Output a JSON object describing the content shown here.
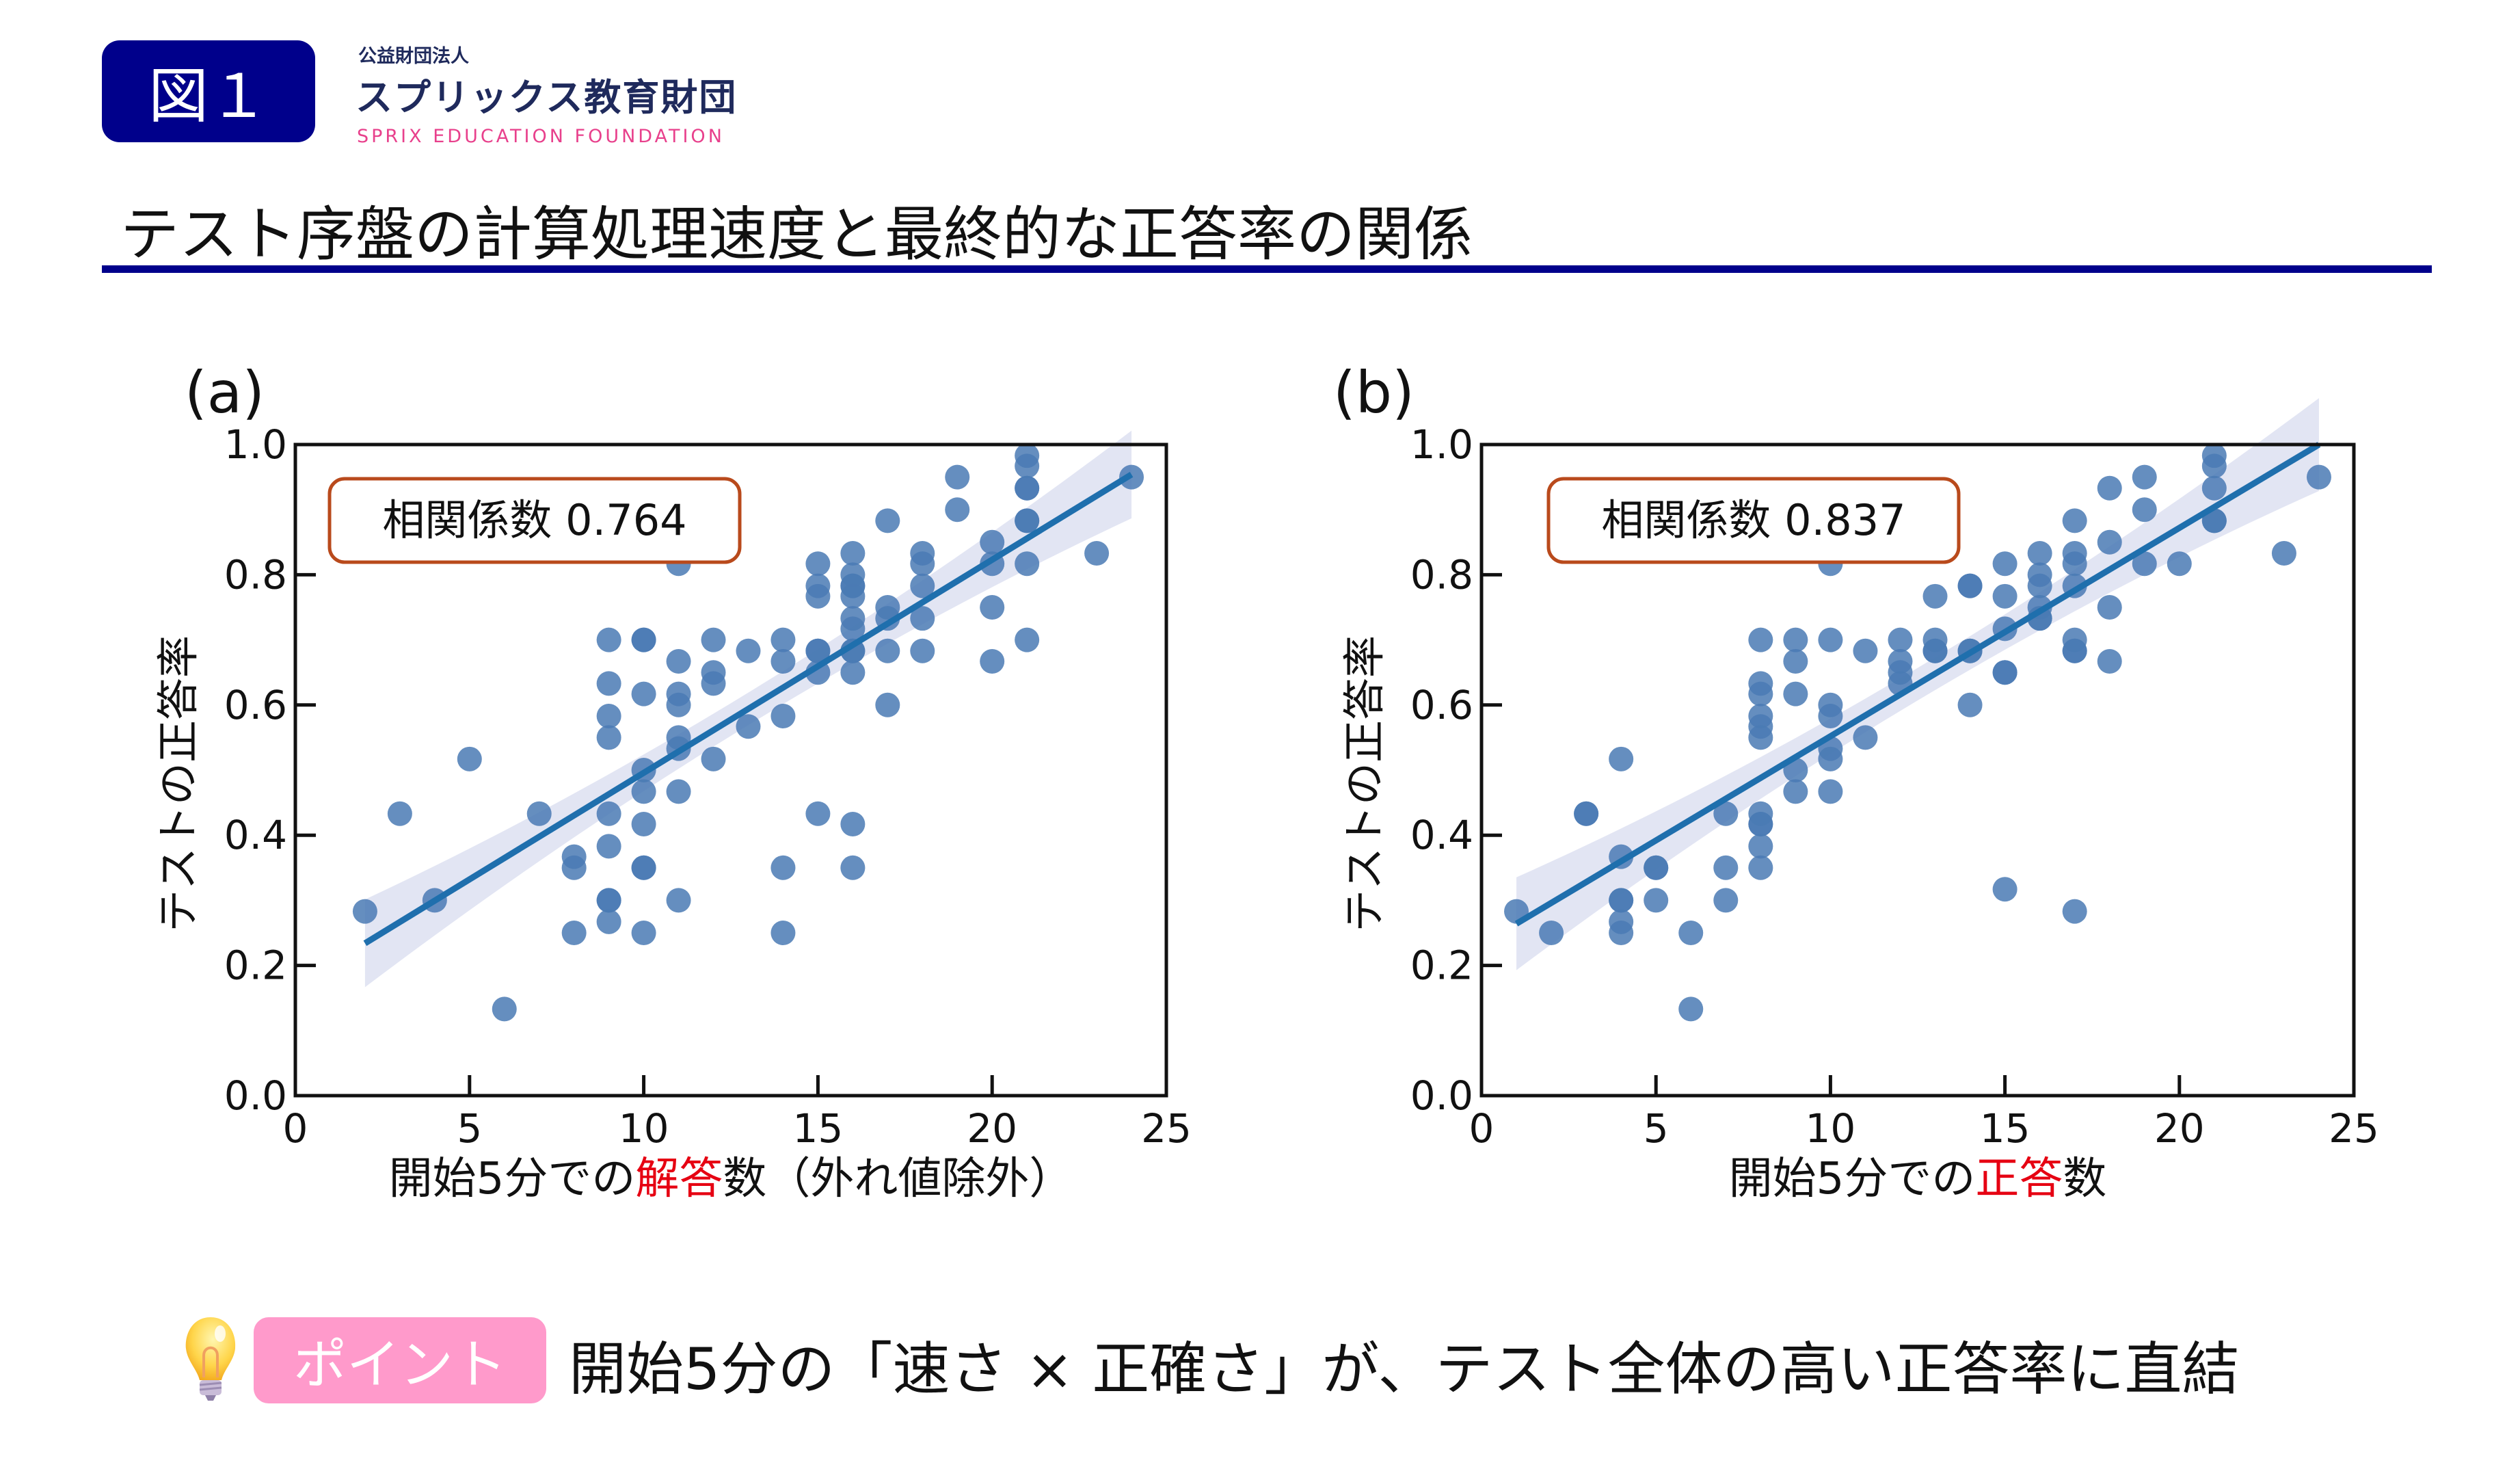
{
  "header": {
    "figure_badge": "図１",
    "org_type": "公益財団法人",
    "org_name": "スプリックス教育財団",
    "org_name_en": "SPRIX EDUCATION FOUNDATION",
    "title": "テスト序盤の計算処理速度と最終的な正答率の関係"
  },
  "colors": {
    "badge": "#00008b",
    "rule": "#00008b",
    "brand_pink": "#e8408c",
    "marker": "#4a7ab4",
    "regression_line": "#1f6fad",
    "ci_band": "#dde1f1",
    "annotation_border": "#b94a1c",
    "highlight_text": "#e60012",
    "point_badge": "#ff9acb"
  },
  "chart_data": [
    {
      "panel_label": "(a)",
      "type": "scatter",
      "annotation": "相関係数 0.764",
      "xlabel_parts": [
        "開始5分での",
        "解答",
        "数（外れ値除外）"
      ],
      "ylabel": "テストの正答率",
      "xlim": [
        0,
        25
      ],
      "ylim": [
        0,
        1.0
      ],
      "xticks": [
        "0",
        "5",
        "10",
        "15",
        "20",
        "25"
      ],
      "yticks": [
        "0.0",
        "0.2",
        "0.4",
        "0.6",
        "0.8",
        "1.0"
      ],
      "grid": false,
      "regression": {
        "x": [
          2,
          24
        ],
        "y": [
          0.234,
          0.954
        ]
      },
      "points": [
        [
          2,
          0.283
        ],
        [
          3,
          0.433
        ],
        [
          4,
          0.3
        ],
        [
          5,
          0.517
        ],
        [
          6,
          0.133
        ],
        [
          7,
          0.433
        ],
        [
          8,
          0.367
        ],
        [
          8,
          0.35
        ],
        [
          8,
          0.25
        ],
        [
          9,
          0.7
        ],
        [
          9,
          0.633
        ],
        [
          9,
          0.583
        ],
        [
          9,
          0.55
        ],
        [
          9,
          0.433
        ],
        [
          9,
          0.383
        ],
        [
          9,
          0.3
        ],
        [
          9,
          0.3
        ],
        [
          9,
          0.267
        ],
        [
          10,
          0.7
        ],
        [
          10,
          0.7
        ],
        [
          10,
          0.617
        ],
        [
          10,
          0.5
        ],
        [
          10,
          0.467
        ],
        [
          10,
          0.417
        ],
        [
          10,
          0.35
        ],
        [
          10,
          0.35
        ],
        [
          10,
          0.25
        ],
        [
          11,
          0.817
        ],
        [
          11,
          0.667
        ],
        [
          11,
          0.617
        ],
        [
          11,
          0.6
        ],
        [
          11,
          0.55
        ],
        [
          11,
          0.533
        ],
        [
          11,
          0.467
        ],
        [
          11,
          0.3
        ],
        [
          12,
          0.7
        ],
        [
          12,
          0.65
        ],
        [
          12,
          0.633
        ],
        [
          12,
          0.517
        ],
        [
          13,
          0.683
        ],
        [
          13,
          0.567
        ],
        [
          14,
          0.7
        ],
        [
          14,
          0.667
        ],
        [
          14,
          0.583
        ],
        [
          14,
          0.35
        ],
        [
          14,
          0.25
        ],
        [
          15,
          0.817
        ],
        [
          15,
          0.783
        ],
        [
          15,
          0.767
        ],
        [
          15,
          0.683
        ],
        [
          15,
          0.683
        ],
        [
          15,
          0.65
        ],
        [
          15,
          0.433
        ],
        [
          16,
          0.833
        ],
        [
          16,
          0.8
        ],
        [
          16,
          0.783
        ],
        [
          16,
          0.783
        ],
        [
          16,
          0.767
        ],
        [
          16,
          0.733
        ],
        [
          16,
          0.717
        ],
        [
          16,
          0.683
        ],
        [
          16,
          0.683
        ],
        [
          16,
          0.65
        ],
        [
          16,
          0.417
        ],
        [
          16,
          0.35
        ],
        [
          17,
          0.883
        ],
        [
          17,
          0.75
        ],
        [
          17,
          0.733
        ],
        [
          17,
          0.683
        ],
        [
          17,
          0.6
        ],
        [
          18,
          0.833
        ],
        [
          18,
          0.817
        ],
        [
          18,
          0.783
        ],
        [
          18,
          0.733
        ],
        [
          18,
          0.683
        ],
        [
          19,
          0.95
        ],
        [
          19,
          0.9
        ],
        [
          20,
          0.85
        ],
        [
          20,
          0.817
        ],
        [
          20,
          0.75
        ],
        [
          20,
          0.667
        ],
        [
          21,
          0.983
        ],
        [
          21,
          0.967
        ],
        [
          21,
          0.933
        ],
        [
          21,
          0.933
        ],
        [
          21,
          0.883
        ],
        [
          21,
          0.883
        ],
        [
          21,
          0.817
        ],
        [
          21,
          0.7
        ],
        [
          23,
          0.833
        ],
        [
          24,
          0.95
        ]
      ]
    },
    {
      "panel_label": "(b)",
      "type": "scatter",
      "annotation": "相関係数 0.837",
      "xlabel_parts": [
        "開始5分での",
        "正答",
        "数"
      ],
      "ylabel": "テストの正答率",
      "xlim": [
        0,
        25
      ],
      "ylim": [
        0,
        1.0
      ],
      "xticks": [
        "0",
        "5",
        "10",
        "15",
        "20",
        "25"
      ],
      "yticks": [
        "0.0",
        "0.2",
        "0.4",
        "0.6",
        "0.8",
        "1.0"
      ],
      "grid": false,
      "regression": {
        "x": [
          1,
          24
        ],
        "y": [
          0.264,
          1.0
        ]
      },
      "points": [
        [
          1,
          0.283
        ],
        [
          2,
          0.25
        ],
        [
          3,
          0.433
        ],
        [
          3,
          0.433
        ],
        [
          4,
          0.517
        ],
        [
          4,
          0.367
        ],
        [
          4,
          0.3
        ],
        [
          4,
          0.3
        ],
        [
          4,
          0.267
        ],
        [
          4,
          0.25
        ],
        [
          5,
          0.35
        ],
        [
          5,
          0.35
        ],
        [
          5,
          0.3
        ],
        [
          6,
          0.25
        ],
        [
          6,
          0.133
        ],
        [
          7,
          0.433
        ],
        [
          7,
          0.35
        ],
        [
          7,
          0.3
        ],
        [
          8,
          0.7
        ],
        [
          8,
          0.633
        ],
        [
          8,
          0.617
        ],
        [
          8,
          0.583
        ],
        [
          8,
          0.567
        ],
        [
          8,
          0.55
        ],
        [
          8,
          0.433
        ],
        [
          8,
          0.417
        ],
        [
          8,
          0.417
        ],
        [
          8,
          0.383
        ],
        [
          8,
          0.35
        ],
        [
          9,
          0.7
        ],
        [
          9,
          0.667
        ],
        [
          9,
          0.617
        ],
        [
          9,
          0.5
        ],
        [
          9,
          0.467
        ],
        [
          10,
          0.817
        ],
        [
          10,
          0.7
        ],
        [
          10,
          0.6
        ],
        [
          10,
          0.583
        ],
        [
          10,
          0.533
        ],
        [
          10,
          0.517
        ],
        [
          10,
          0.467
        ],
        [
          11,
          0.683
        ],
        [
          11,
          0.55
        ],
        [
          12,
          0.7
        ],
        [
          12,
          0.667
        ],
        [
          12,
          0.65
        ],
        [
          12,
          0.633
        ],
        [
          13,
          0.767
        ],
        [
          13,
          0.7
        ],
        [
          13,
          0.683
        ],
        [
          13,
          0.683
        ],
        [
          14,
          0.783
        ],
        [
          14,
          0.783
        ],
        [
          14,
          0.683
        ],
        [
          14,
          0.683
        ],
        [
          14,
          0.6
        ],
        [
          15,
          0.817
        ],
        [
          15,
          0.767
        ],
        [
          15,
          0.717
        ],
        [
          15,
          0.65
        ],
        [
          15,
          0.65
        ],
        [
          15,
          0.317
        ],
        [
          16,
          0.833
        ],
        [
          16,
          0.8
        ],
        [
          16,
          0.783
        ],
        [
          16,
          0.75
        ],
        [
          16,
          0.733
        ],
        [
          16,
          0.733
        ],
        [
          17,
          0.883
        ],
        [
          17,
          0.833
        ],
        [
          17,
          0.817
        ],
        [
          17,
          0.783
        ],
        [
          17,
          0.7
        ],
        [
          17,
          0.683
        ],
        [
          17,
          0.683
        ],
        [
          17,
          0.283
        ],
        [
          18,
          0.933
        ],
        [
          18,
          0.85
        ],
        [
          18,
          0.75
        ],
        [
          18,
          0.667
        ],
        [
          19,
          0.95
        ],
        [
          19,
          0.9
        ],
        [
          19,
          0.817
        ],
        [
          20,
          0.817
        ],
        [
          21,
          0.983
        ],
        [
          21,
          0.967
        ],
        [
          21,
          0.933
        ],
        [
          21,
          0.883
        ],
        [
          21,
          0.883
        ],
        [
          23,
          0.833
        ],
        [
          24,
          0.95
        ]
      ]
    }
  ],
  "point": {
    "icon": "lightbulb-icon",
    "badge": "ポイント",
    "text": "開始5分の「速さ × 正確さ」が、テスト全体の高い正答率に直結"
  }
}
